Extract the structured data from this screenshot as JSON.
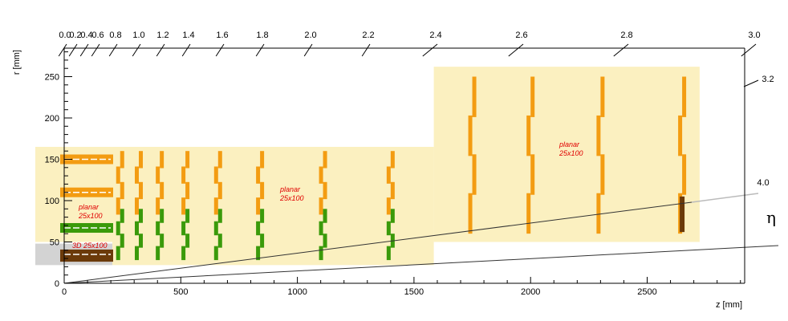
{
  "x_axis": {
    "title": "z [mm]",
    "range": [
      0,
      2920
    ],
    "major_ticks": [
      0,
      500,
      1000,
      1500,
      2000,
      2500
    ],
    "minor_step": 100
  },
  "y_axis": {
    "title": "r [mm]",
    "range": [
      0,
      290
    ],
    "major_ticks": [
      0,
      50,
      100,
      150,
      200,
      250
    ],
    "minor_step": 10
  },
  "eta_axis": {
    "symbol": "η",
    "tick_labels": [
      "0.0",
      "0.2",
      "0.4",
      "0.6",
      "0.8",
      "1.0",
      "1.2",
      "1.4",
      "1.6",
      "1.8",
      "2.0",
      "2.2",
      "2.4",
      "2.6",
      "2.8",
      "3.0",
      "3.2",
      "4.0"
    ]
  },
  "regions": [
    {
      "label": "planar\n25x100",
      "z": [
        -120,
        1585
      ],
      "r": [
        50,
        165
      ]
    },
    {
      "label": "planar\n25x100",
      "z": [
        1585,
        2725
      ],
      "r": [
        50,
        260
      ]
    },
    {
      "label": "3D 25x100",
      "z": [
        -120,
        210
      ],
      "r": [
        22,
        48
      ]
    }
  ],
  "barrel_layers": [
    {
      "r": 35,
      "type": "3D"
    },
    {
      "r": 65,
      "type": "planar-inner"
    },
    {
      "r": 110,
      "type": "planar"
    },
    {
      "r": 150,
      "type": "planar"
    }
  ],
  "endcap_disks": {
    "z": [
      240,
      320,
      410,
      520,
      660,
      840,
      1110,
      1400
    ],
    "r_orange": [
      85,
      160
    ],
    "r_green": [
      30,
      90
    ]
  },
  "outer_disks": {
    "z": [
      1750,
      2000,
      2300,
      2650
    ],
    "r_orange": [
      62,
      250
    ]
  },
  "region_labels": {
    "inner_planar": "planar\n25x100",
    "middle_planar": "planar\n25x100",
    "outer_planar": "planar\n25x100",
    "3d": "3D 25x100"
  },
  "colors": {
    "orange": "#f39c12",
    "green": "#3a9a0a",
    "dark_brown": "#6b3a0a",
    "region_fill": "#fbf0c0",
    "grey_box": "#d3d3d3",
    "eta_line": "#333333"
  }
}
